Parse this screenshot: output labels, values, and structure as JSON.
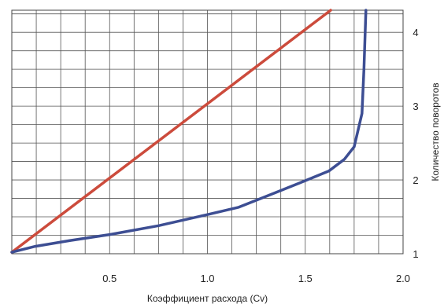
{
  "chart_data": {
    "type": "line",
    "xlabel": "Коэффициент расхода (Cv)",
    "ylabel": "Количество поворотов",
    "xlim": [
      0,
      2.0
    ],
    "ylim": [
      1,
      4.3
    ],
    "x_ticks": [
      {
        "value": 0.5,
        "label": "0.5"
      },
      {
        "value": 1.0,
        "label": "1.0"
      },
      {
        "value": 1.5,
        "label": "1.5"
      },
      {
        "value": 2.0,
        "label": "2.0"
      }
    ],
    "y_ticks": [
      {
        "value": 1,
        "label": "1"
      },
      {
        "value": 2,
        "label": "2"
      },
      {
        "value": 3,
        "label": "3"
      },
      {
        "value": 4,
        "label": "4"
      }
    ],
    "x_grid_step": 0.125,
    "y_grid_step": 0.25,
    "grid": true,
    "series": [
      {
        "color": "#cc4b3c",
        "points": [
          [
            0.0,
            1.02
          ],
          [
            1.63,
            4.3
          ]
        ]
      },
      {
        "color": "#3d4e93",
        "points": [
          [
            0.0,
            1.02
          ],
          [
            0.12,
            1.1
          ],
          [
            0.3,
            1.18
          ],
          [
            0.5,
            1.26
          ],
          [
            0.75,
            1.38
          ],
          [
            1.0,
            1.53
          ],
          [
            1.16,
            1.63
          ],
          [
            1.35,
            1.83
          ],
          [
            1.5,
            1.99
          ],
          [
            1.62,
            2.12
          ],
          [
            1.7,
            2.28
          ],
          [
            1.75,
            2.45
          ],
          [
            1.79,
            2.9
          ],
          [
            1.8,
            3.5
          ],
          [
            1.81,
            4.3
          ]
        ]
      }
    ]
  }
}
